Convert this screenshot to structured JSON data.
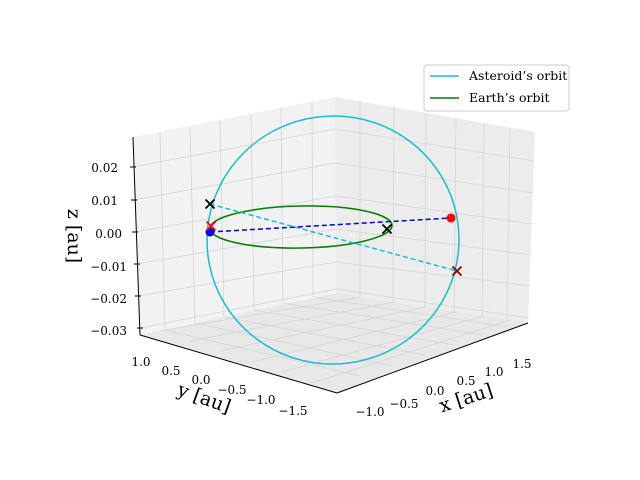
{
  "chart_data": {
    "type": "line",
    "projection": "3d",
    "title": "",
    "xlabel": "$x$ [au]",
    "ylabel": "$y$ [au]",
    "zlabel": "$z$ [au]",
    "x_axis": {
      "label_text": "x [au]",
      "ticks": [
        "−1.0",
        "−0.5",
        "0.0",
        "0.5",
        "1.0",
        "1.5"
      ],
      "range": [
        -1.2,
        1.7
      ]
    },
    "y_axis": {
      "label_text": "y [au]",
      "ticks": [
        "1.0",
        "0.5",
        "0.0",
        "−0.5",
        "−1.0",
        "−1.5"
      ],
      "range": [
        1.2,
        -1.7
      ]
    },
    "z_axis": {
      "label_text": "z [au]",
      "ticks": [
        "0.02",
        "0.01",
        "0.00",
        "−0.01",
        "−0.02",
        "−0.03"
      ],
      "range": [
        -0.03,
        0.025
      ]
    },
    "grid": true,
    "legend": {
      "position": "top-right",
      "entries": [
        {
          "label": "Asteroid’s orbit",
          "color": "#17becf"
        },
        {
          "label": "Earth’s orbit",
          "color": "#008000"
        }
      ]
    },
    "series": [
      {
        "name": "Asteroid’s orbit",
        "style": "solid",
        "color": "#17becf",
        "shape": "ellipse",
        "semi_major_axis_au": 1.45,
        "inclination_deg": 0.8
      },
      {
        "name": "Earth’s orbit",
        "style": "solid",
        "color": "#008000",
        "shape": "circle",
        "radius_au": 1.0,
        "inclination_deg": 0.0
      }
    ],
    "connectors": [
      {
        "style": "dashed",
        "color": "#0000cd"
      },
      {
        "style": "dashed",
        "color": "#17becf"
      }
    ],
    "markers": [
      {
        "symbol": "dot",
        "color": "#ff0000"
      },
      {
        "symbol": "dot",
        "color": "#0000ff"
      },
      {
        "symbol": "x",
        "color": "#000000"
      },
      {
        "symbol": "x",
        "color": "#000000"
      },
      {
        "symbol": "x",
        "color": "#8b0000"
      },
      {
        "symbol": "x",
        "color": "#ff0000"
      }
    ]
  }
}
